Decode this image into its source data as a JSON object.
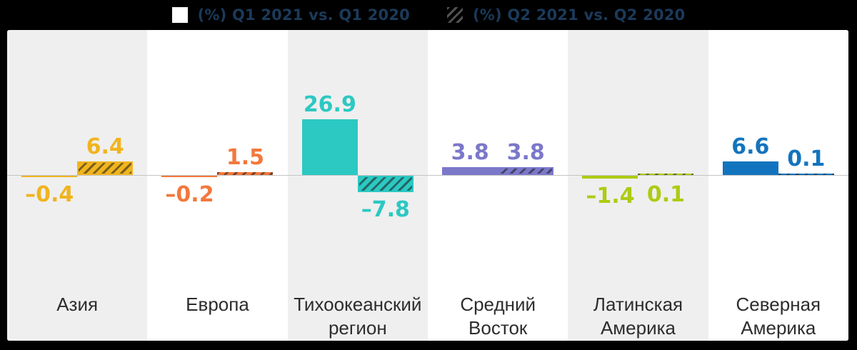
{
  "legend": {
    "q1_label": "(%) Q1 2021 vs. Q1 2020",
    "q2_label": "(%) Q2 2021 vs. Q2 2020",
    "text_color": "#1b3a5a"
  },
  "chart_data": {
    "type": "bar",
    "categories": [
      "Азия",
      "Европа",
      "Тихоокеанский регион",
      "Средний Восток",
      "Латинская Америка",
      "Северная Америка"
    ],
    "series": [
      {
        "name": "(%) Q1 2021 vs. Q1 2020",
        "style": "solid",
        "values": [
          -0.4,
          -0.2,
          26.9,
          3.8,
          -1.4,
          6.6
        ]
      },
      {
        "name": "(%) Q2 2021 vs. Q2 2020",
        "style": "hatched",
        "values": [
          6.4,
          1.5,
          -7.8,
          3.8,
          0.1,
          0.1
        ]
      }
    ],
    "unit": "%",
    "ylim": [
      -12,
      30
    ],
    "grid": false,
    "zero_line": true,
    "legend_position": "top",
    "band_colors": [
      "#efefef",
      "#ffffff"
    ]
  },
  "regions": [
    {
      "name": "Азия",
      "q1": -0.4,
      "q2": 6.4,
      "q1_label": "–0.4",
      "q2_label": "6.4",
      "color": "#F0B41E",
      "band": "#efefef",
      "q1_side": "below",
      "q2_side": "above"
    },
    {
      "name": "Европа",
      "q1": -0.2,
      "q2": 1.5,
      "q1_label": "–0.2",
      "q2_label": "1.5",
      "color": "#F3783B",
      "band": "#ffffff",
      "q1_side": "below",
      "q2_side": "above"
    },
    {
      "name": "Тихоокеанский\nрегион",
      "q1": 26.9,
      "q2": -7.8,
      "q1_label": "26.9",
      "q2_label": "–7.8",
      "color": "#2CC8C2",
      "band": "#efefef",
      "q1_side": "above",
      "q2_side": "below"
    },
    {
      "name": "Средний\nВосток",
      "q1": 3.8,
      "q2": 3.8,
      "q1_label": "3.8",
      "q2_label": "3.8",
      "color": "#7B78CA",
      "band": "#ffffff",
      "q1_side": "above",
      "q2_side": "above"
    },
    {
      "name": "Латинская\nАмерика",
      "q1": -1.4,
      "q2": 0.1,
      "q1_label": "–1.4",
      "q2_label": "0.1",
      "color": "#AECB12",
      "band": "#efefef",
      "q1_side": "below",
      "q2_side": "below"
    },
    {
      "name": "Северная\nАмерика",
      "q1": 6.6,
      "q2": 0.1,
      "q1_label": "6.6",
      "q2_label": "0.1",
      "color": "#1274BE",
      "band": "#ffffff",
      "q1_side": "above",
      "q2_side": "above"
    }
  ]
}
